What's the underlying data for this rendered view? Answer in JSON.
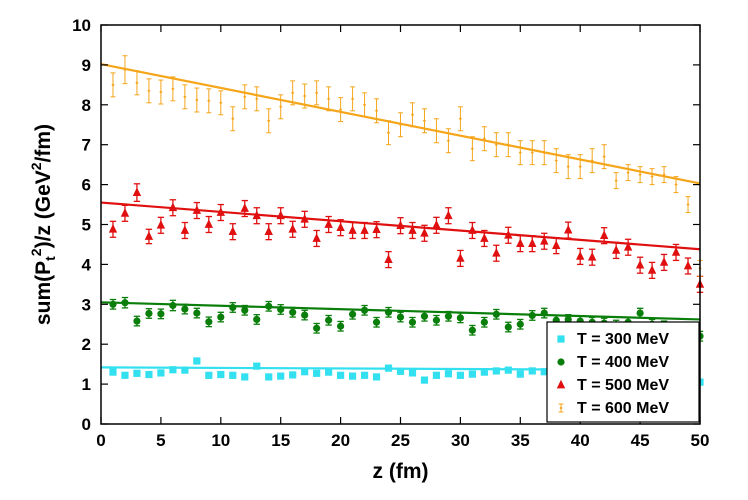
{
  "chart_data": {
    "type": "scatter",
    "title": "",
    "xlabel": "z (fm)",
    "ylabel": {
      "base": "sum(P",
      "sub": "t",
      "sup": "2",
      "tail": ")/z (GeV",
      "sup2": "2",
      "end": "/fm)"
    },
    "xlim": [
      0,
      50
    ],
    "ylim": [
      0,
      10
    ],
    "xticks": [
      0,
      5,
      10,
      15,
      20,
      25,
      30,
      35,
      40,
      45,
      50
    ],
    "yticks": [
      0,
      1,
      2,
      3,
      4,
      5,
      6,
      7,
      8,
      9,
      10
    ],
    "grid": false,
    "legend_position": "bottom-right",
    "series": [
      {
        "name": "T = 300 MeV",
        "color": "#33e0f0",
        "marker": "square",
        "fit": [
          1.42,
          1.35
        ],
        "x": [
          1,
          2,
          3,
          4,
          5,
          6,
          7,
          8,
          9,
          10,
          11,
          12,
          13,
          14,
          15,
          16,
          17,
          18,
          19,
          20,
          21,
          22,
          23,
          24,
          25,
          26,
          27,
          28,
          29,
          30,
          31,
          32,
          33,
          34,
          35,
          36,
          37,
          38,
          39,
          40,
          41,
          42,
          43,
          44,
          45,
          46,
          47,
          48,
          49,
          50
        ],
        "y": [
          1.3,
          1.22,
          1.27,
          1.24,
          1.28,
          1.36,
          1.35,
          1.58,
          1.22,
          1.24,
          1.22,
          1.18,
          1.45,
          1.18,
          1.2,
          1.23,
          1.31,
          1.27,
          1.3,
          1.22,
          1.2,
          1.22,
          1.18,
          1.4,
          1.32,
          1.28,
          1.1,
          1.22,
          1.26,
          1.22,
          1.25,
          1.3,
          1.33,
          1.35,
          1.25,
          1.33,
          1.31,
          1.3,
          1.32,
          1.3,
          1.28,
          1.28,
          1.3,
          1.28,
          1.3,
          1.27,
          1.26,
          1.28,
          1.1,
          1.05
        ],
        "err": [
          0.05,
          0.05,
          0.05,
          0.05,
          0.05,
          0.05,
          0.05,
          0.07,
          0.05,
          0.05,
          0.05,
          0.05,
          0.06,
          0.05,
          0.05,
          0.05,
          0.05,
          0.05,
          0.05,
          0.05,
          0.05,
          0.05,
          0.05,
          0.06,
          0.05,
          0.05,
          0.05,
          0.05,
          0.05,
          0.05,
          0.05,
          0.05,
          0.05,
          0.05,
          0.05,
          0.05,
          0.05,
          0.05,
          0.05,
          0.05,
          0.05,
          0.05,
          0.05,
          0.05,
          0.05,
          0.05,
          0.05,
          0.05,
          0.05,
          0.05
        ]
      },
      {
        "name": "T = 400 MeV",
        "color": "#0a7e0a",
        "marker": "circle",
        "fit": [
          3.05,
          2.62
        ],
        "x": [
          1,
          2,
          3,
          4,
          5,
          6,
          7,
          8,
          9,
          10,
          11,
          12,
          13,
          14,
          15,
          16,
          17,
          18,
          19,
          20,
          21,
          22,
          23,
          24,
          25,
          26,
          27,
          28,
          29,
          30,
          31,
          32,
          33,
          34,
          35,
          36,
          37,
          38,
          39,
          40,
          41,
          42,
          43,
          44,
          45,
          46,
          47,
          48,
          49,
          50
        ],
        "y": [
          3.0,
          3.04,
          2.58,
          2.77,
          2.76,
          2.97,
          2.88,
          2.78,
          2.56,
          2.68,
          2.92,
          2.85,
          2.62,
          2.95,
          2.87,
          2.8,
          2.73,
          2.4,
          2.6,
          2.45,
          2.75,
          2.85,
          2.55,
          2.8,
          2.68,
          2.55,
          2.7,
          2.6,
          2.7,
          2.66,
          2.35,
          2.55,
          2.75,
          2.43,
          2.5,
          2.72,
          2.78,
          2.6,
          2.62,
          2.58,
          2.55,
          2.53,
          2.48,
          2.55,
          2.78,
          2.5,
          2.46,
          2.3,
          2.38,
          2.2
        ],
        "err": [
          0.12,
          0.13,
          0.12,
          0.12,
          0.12,
          0.13,
          0.12,
          0.12,
          0.12,
          0.12,
          0.12,
          0.12,
          0.12,
          0.12,
          0.12,
          0.12,
          0.12,
          0.12,
          0.12,
          0.12,
          0.12,
          0.12,
          0.12,
          0.12,
          0.12,
          0.12,
          0.12,
          0.12,
          0.12,
          0.12,
          0.12,
          0.12,
          0.12,
          0.12,
          0.12,
          0.12,
          0.12,
          0.12,
          0.12,
          0.12,
          0.12,
          0.12,
          0.12,
          0.12,
          0.12,
          0.12,
          0.12,
          0.12,
          0.12,
          0.12
        ]
      },
      {
        "name": "T = 500 MeV",
        "color": "#e01010",
        "marker": "triangle",
        "fit": [
          5.55,
          4.38
        ],
        "x": [
          1,
          2,
          3,
          4,
          5,
          6,
          7,
          8,
          9,
          10,
          11,
          12,
          13,
          14,
          15,
          16,
          17,
          18,
          19,
          20,
          21,
          22,
          23,
          24,
          25,
          26,
          27,
          28,
          29,
          30,
          31,
          32,
          33,
          34,
          35,
          36,
          37,
          38,
          39,
          40,
          41,
          42,
          43,
          44,
          45,
          46,
          47,
          48,
          49,
          50
        ],
        "y": [
          4.88,
          5.28,
          5.8,
          4.7,
          4.98,
          5.42,
          4.85,
          5.35,
          5.0,
          5.3,
          4.82,
          5.4,
          5.22,
          4.82,
          5.22,
          4.88,
          5.13,
          4.65,
          5.0,
          4.92,
          4.85,
          4.85,
          4.87,
          4.12,
          4.97,
          4.85,
          4.78,
          4.98,
          5.22,
          4.15,
          4.85,
          4.65,
          4.28,
          4.73,
          4.52,
          4.52,
          4.58,
          4.47,
          4.86,
          4.2,
          4.18,
          4.72,
          4.35,
          4.43,
          3.98,
          3.85,
          4.05,
          4.3,
          3.96,
          3.5
        ],
        "err": [
          0.2,
          0.2,
          0.22,
          0.18,
          0.2,
          0.2,
          0.2,
          0.2,
          0.2,
          0.2,
          0.2,
          0.2,
          0.2,
          0.2,
          0.2,
          0.2,
          0.2,
          0.2,
          0.2,
          0.2,
          0.2,
          0.2,
          0.2,
          0.2,
          0.2,
          0.2,
          0.2,
          0.2,
          0.2,
          0.2,
          0.2,
          0.2,
          0.2,
          0.2,
          0.2,
          0.2,
          0.2,
          0.2,
          0.2,
          0.2,
          0.2,
          0.2,
          0.2,
          0.2,
          0.2,
          0.2,
          0.2,
          0.2,
          0.2,
          0.2
        ]
      },
      {
        "name": "T = 600 MeV",
        "color": "#f5a51a",
        "marker": "diamond",
        "fit": [
          9.02,
          6.03
        ],
        "x": [
          1,
          2,
          3,
          4,
          5,
          6,
          7,
          8,
          9,
          10,
          11,
          12,
          13,
          14,
          15,
          16,
          17,
          18,
          19,
          20,
          21,
          22,
          23,
          24,
          25,
          26,
          27,
          28,
          29,
          30,
          31,
          32,
          33,
          34,
          35,
          36,
          37,
          38,
          39,
          40,
          41,
          42,
          43,
          44,
          45,
          46,
          47,
          48,
          49,
          50
        ],
        "y": [
          8.5,
          8.88,
          8.55,
          8.35,
          8.32,
          8.4,
          8.2,
          8.12,
          8.1,
          8.05,
          7.65,
          8.2,
          8.15,
          7.6,
          7.95,
          8.3,
          8.22,
          8.3,
          8.15,
          7.88,
          8.15,
          8.0,
          7.85,
          7.3,
          7.5,
          7.75,
          7.6,
          7.35,
          7.1,
          7.65,
          6.9,
          7.15,
          7.0,
          7.0,
          6.8,
          6.8,
          6.8,
          6.6,
          6.45,
          6.45,
          6.6,
          6.7,
          6.1,
          6.3,
          6.25,
          6.2,
          6.25,
          6.0,
          5.5,
          3.9
        ],
        "err": [
          0.3,
          0.35,
          0.3,
          0.3,
          0.3,
          0.3,
          0.3,
          0.3,
          0.3,
          0.3,
          0.3,
          0.3,
          0.3,
          0.3,
          0.3,
          0.3,
          0.3,
          0.3,
          0.3,
          0.3,
          0.3,
          0.3,
          0.3,
          0.3,
          0.3,
          0.3,
          0.3,
          0.3,
          0.3,
          0.3,
          0.3,
          0.3,
          0.3,
          0.3,
          0.3,
          0.3,
          0.3,
          0.3,
          0.3,
          0.3,
          0.3,
          0.3,
          0.2,
          0.2,
          0.2,
          0.2,
          0.2,
          0.2,
          0.2,
          0.2
        ]
      }
    ]
  }
}
